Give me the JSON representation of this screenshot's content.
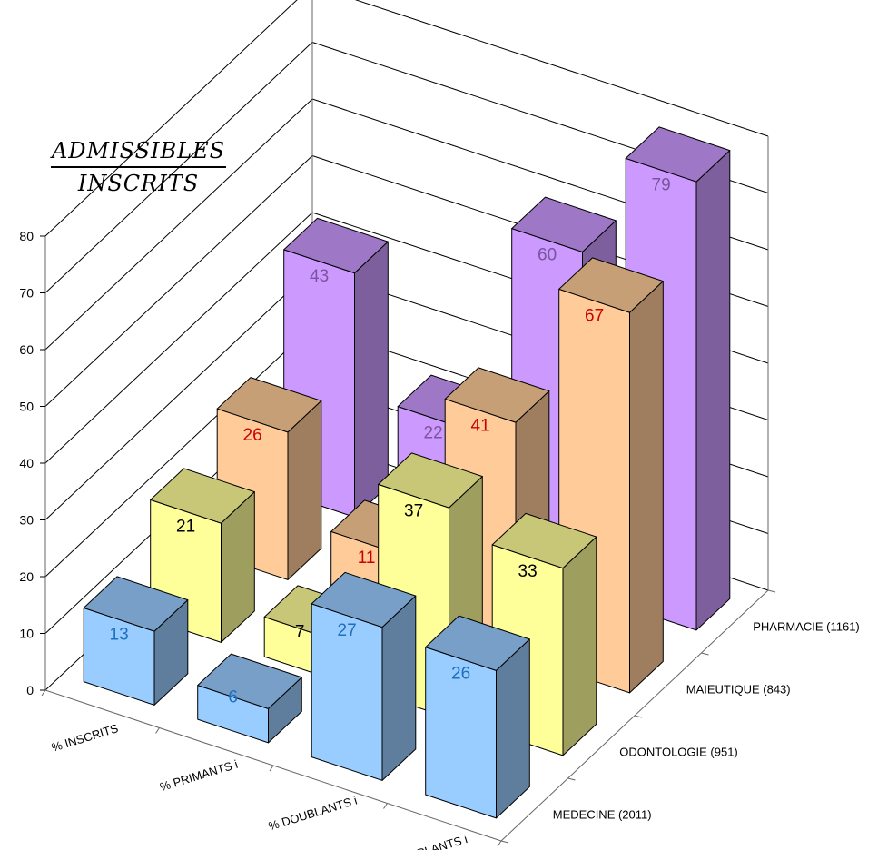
{
  "title": {
    "numerator": "ADMISSIBLES",
    "denominator": "INSCRITS"
  },
  "chart_data": {
    "type": "bar",
    "variant": "3d-clustered",
    "categories": [
      "% INSCRITS",
      "% PRIMANTS i",
      "% DOUBLANTS i",
      "% TRIPLANTS i"
    ],
    "series": [
      {
        "name": "MEDECINE (2011)",
        "values": [
          13,
          6,
          27,
          26
        ],
        "color": "#99ccff",
        "label_color": "#1f6fbf"
      },
      {
        "name": "ODONTOLOGIE (951)",
        "values": [
          21,
          7,
          37,
          33
        ],
        "color": "#ffff99",
        "label_color": "#000000"
      },
      {
        "name": "MAIEUTIQUE (843)",
        "values": [
          26,
          11,
          41,
          67
        ],
        "color": "#ffcc99",
        "label_color": "#cc0000"
      },
      {
        "name": "PHARMACIE (1161)",
        "values": [
          43,
          22,
          60,
          79
        ],
        "color": "#cc99ff",
        "label_color": "#7a559e"
      }
    ],
    "ylim": [
      0,
      80
    ],
    "yticks": [
      0,
      10,
      20,
      30,
      40,
      50,
      60,
      70,
      80
    ],
    "grid": true,
    "xlabel": "",
    "ylabel": ""
  }
}
